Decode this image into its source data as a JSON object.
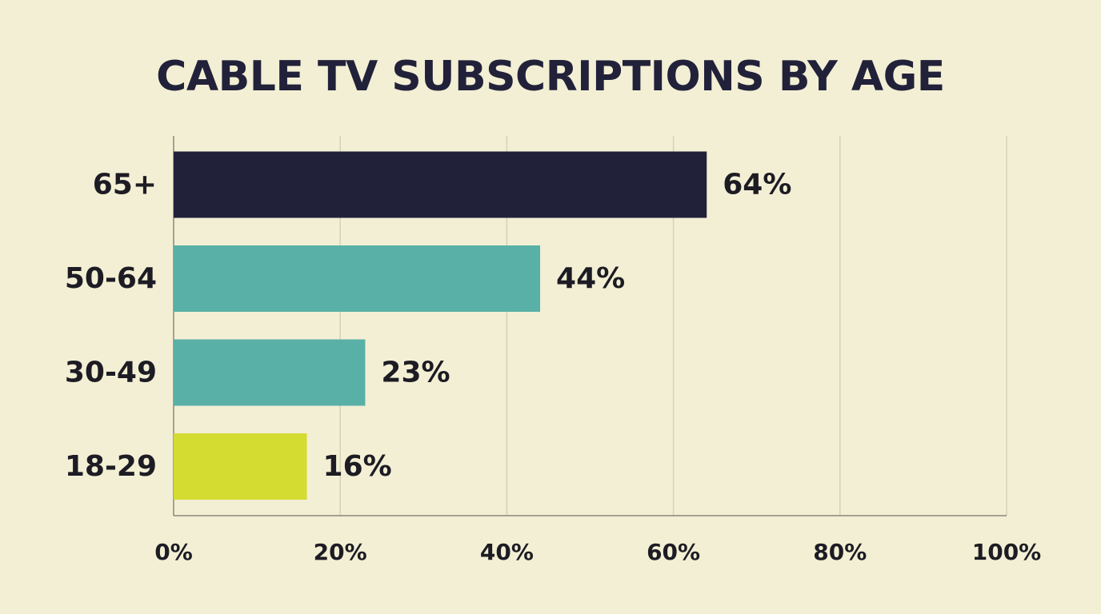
{
  "chart_data": {
    "type": "bar",
    "orientation": "horizontal",
    "title": "CABLE TV SUBSCRIPTIONS BY AGE",
    "xlabel": "",
    "ylabel": "",
    "categories": [
      "65+",
      "50-64",
      "30-49",
      "18-29"
    ],
    "values": [
      64,
      44,
      23,
      16
    ],
    "value_labels": [
      "64%",
      "44%",
      "23%",
      "16%"
    ],
    "bar_colors": [
      "#22213a",
      "#58b0a6",
      "#58b0a6",
      "#d4dc32"
    ],
    "xlim": [
      0,
      100
    ],
    "x_ticks": [
      0,
      20,
      40,
      60,
      80,
      100
    ],
    "x_tick_labels": [
      "0%",
      "20%",
      "40%",
      "60%",
      "80%",
      "100%"
    ],
    "grid": "vertical",
    "legend": "none"
  },
  "colors": {
    "background": "#f3efd4",
    "text": "#1d1c24",
    "gridline": "#d6d1b8",
    "axis": "#8a8778"
  }
}
